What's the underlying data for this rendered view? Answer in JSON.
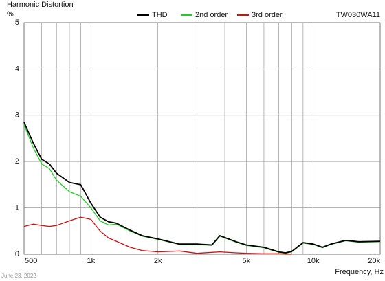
{
  "chart_data": {
    "type": "line",
    "title": "Harmonic Distortion",
    "y_label": "%",
    "x_label": "Frequency, Hz",
    "model": "TW030WA11",
    "date": "June 23, 2022",
    "log_x": true,
    "grid": true,
    "xlim": [
      500,
      20000
    ],
    "ylim": [
      0,
      5
    ],
    "xticks": [
      500,
      {
        "value": 1000,
        "label": "1k"
      },
      {
        "value": 2000,
        "label": "2k"
      },
      {
        "value": 5000,
        "label": "5k"
      },
      {
        "value": 10000,
        "label": "10k"
      },
      {
        "value": 20000,
        "label": "20k"
      }
    ],
    "x_minor_grid": [
      600,
      700,
      800,
      900,
      3000,
      4000,
      6000,
      7000,
      8000,
      9000
    ],
    "yticks": [
      0,
      1,
      2,
      3,
      4,
      5
    ],
    "x": [
      500,
      550,
      600,
      650,
      700,
      800,
      900,
      1000,
      1100,
      1200,
      1300,
      1500,
      1700,
      2000,
      2500,
      3000,
      3500,
      3800,
      4500,
      5000,
      6000,
      7000,
      7500,
      8000,
      9000,
      10000,
      11000,
      12000,
      14000,
      16000,
      20000
    ],
    "series": [
      {
        "name": "THD",
        "color": "#000000",
        "values": [
          2.85,
          2.4,
          2.05,
          1.95,
          1.75,
          1.55,
          1.5,
          1.1,
          0.8,
          0.7,
          0.67,
          0.52,
          0.4,
          0.33,
          0.22,
          0.22,
          0.2,
          0.4,
          0.27,
          0.2,
          0.15,
          0.05,
          0.03,
          0.06,
          0.25,
          0.22,
          0.15,
          0.22,
          0.3,
          0.27,
          0.28
        ]
      },
      {
        "name": "2nd order",
        "color": "#22cc22",
        "values": [
          2.8,
          2.3,
          1.95,
          1.85,
          1.6,
          1.35,
          1.25,
          1.0,
          0.72,
          0.63,
          0.65,
          0.5,
          0.39,
          0.32,
          0.21,
          0.21,
          0.19,
          0.39,
          0.26,
          0.19,
          0.14,
          0.04,
          0.02,
          0.05,
          0.24,
          0.21,
          0.14,
          0.21,
          0.29,
          0.26,
          0.27
        ]
      },
      {
        "name": "3rd order",
        "color": "#cc1111",
        "values": [
          0.6,
          0.65,
          0.62,
          0.6,
          0.62,
          0.72,
          0.8,
          0.75,
          0.5,
          0.35,
          0.28,
          0.15,
          0.08,
          0.05,
          0.07,
          0.02,
          0.04,
          0.05,
          0.03,
          0.02,
          0.01,
          0.01,
          0.0,
          0.0,
          null,
          null,
          null,
          null,
          null,
          null,
          null
        ]
      }
    ]
  }
}
